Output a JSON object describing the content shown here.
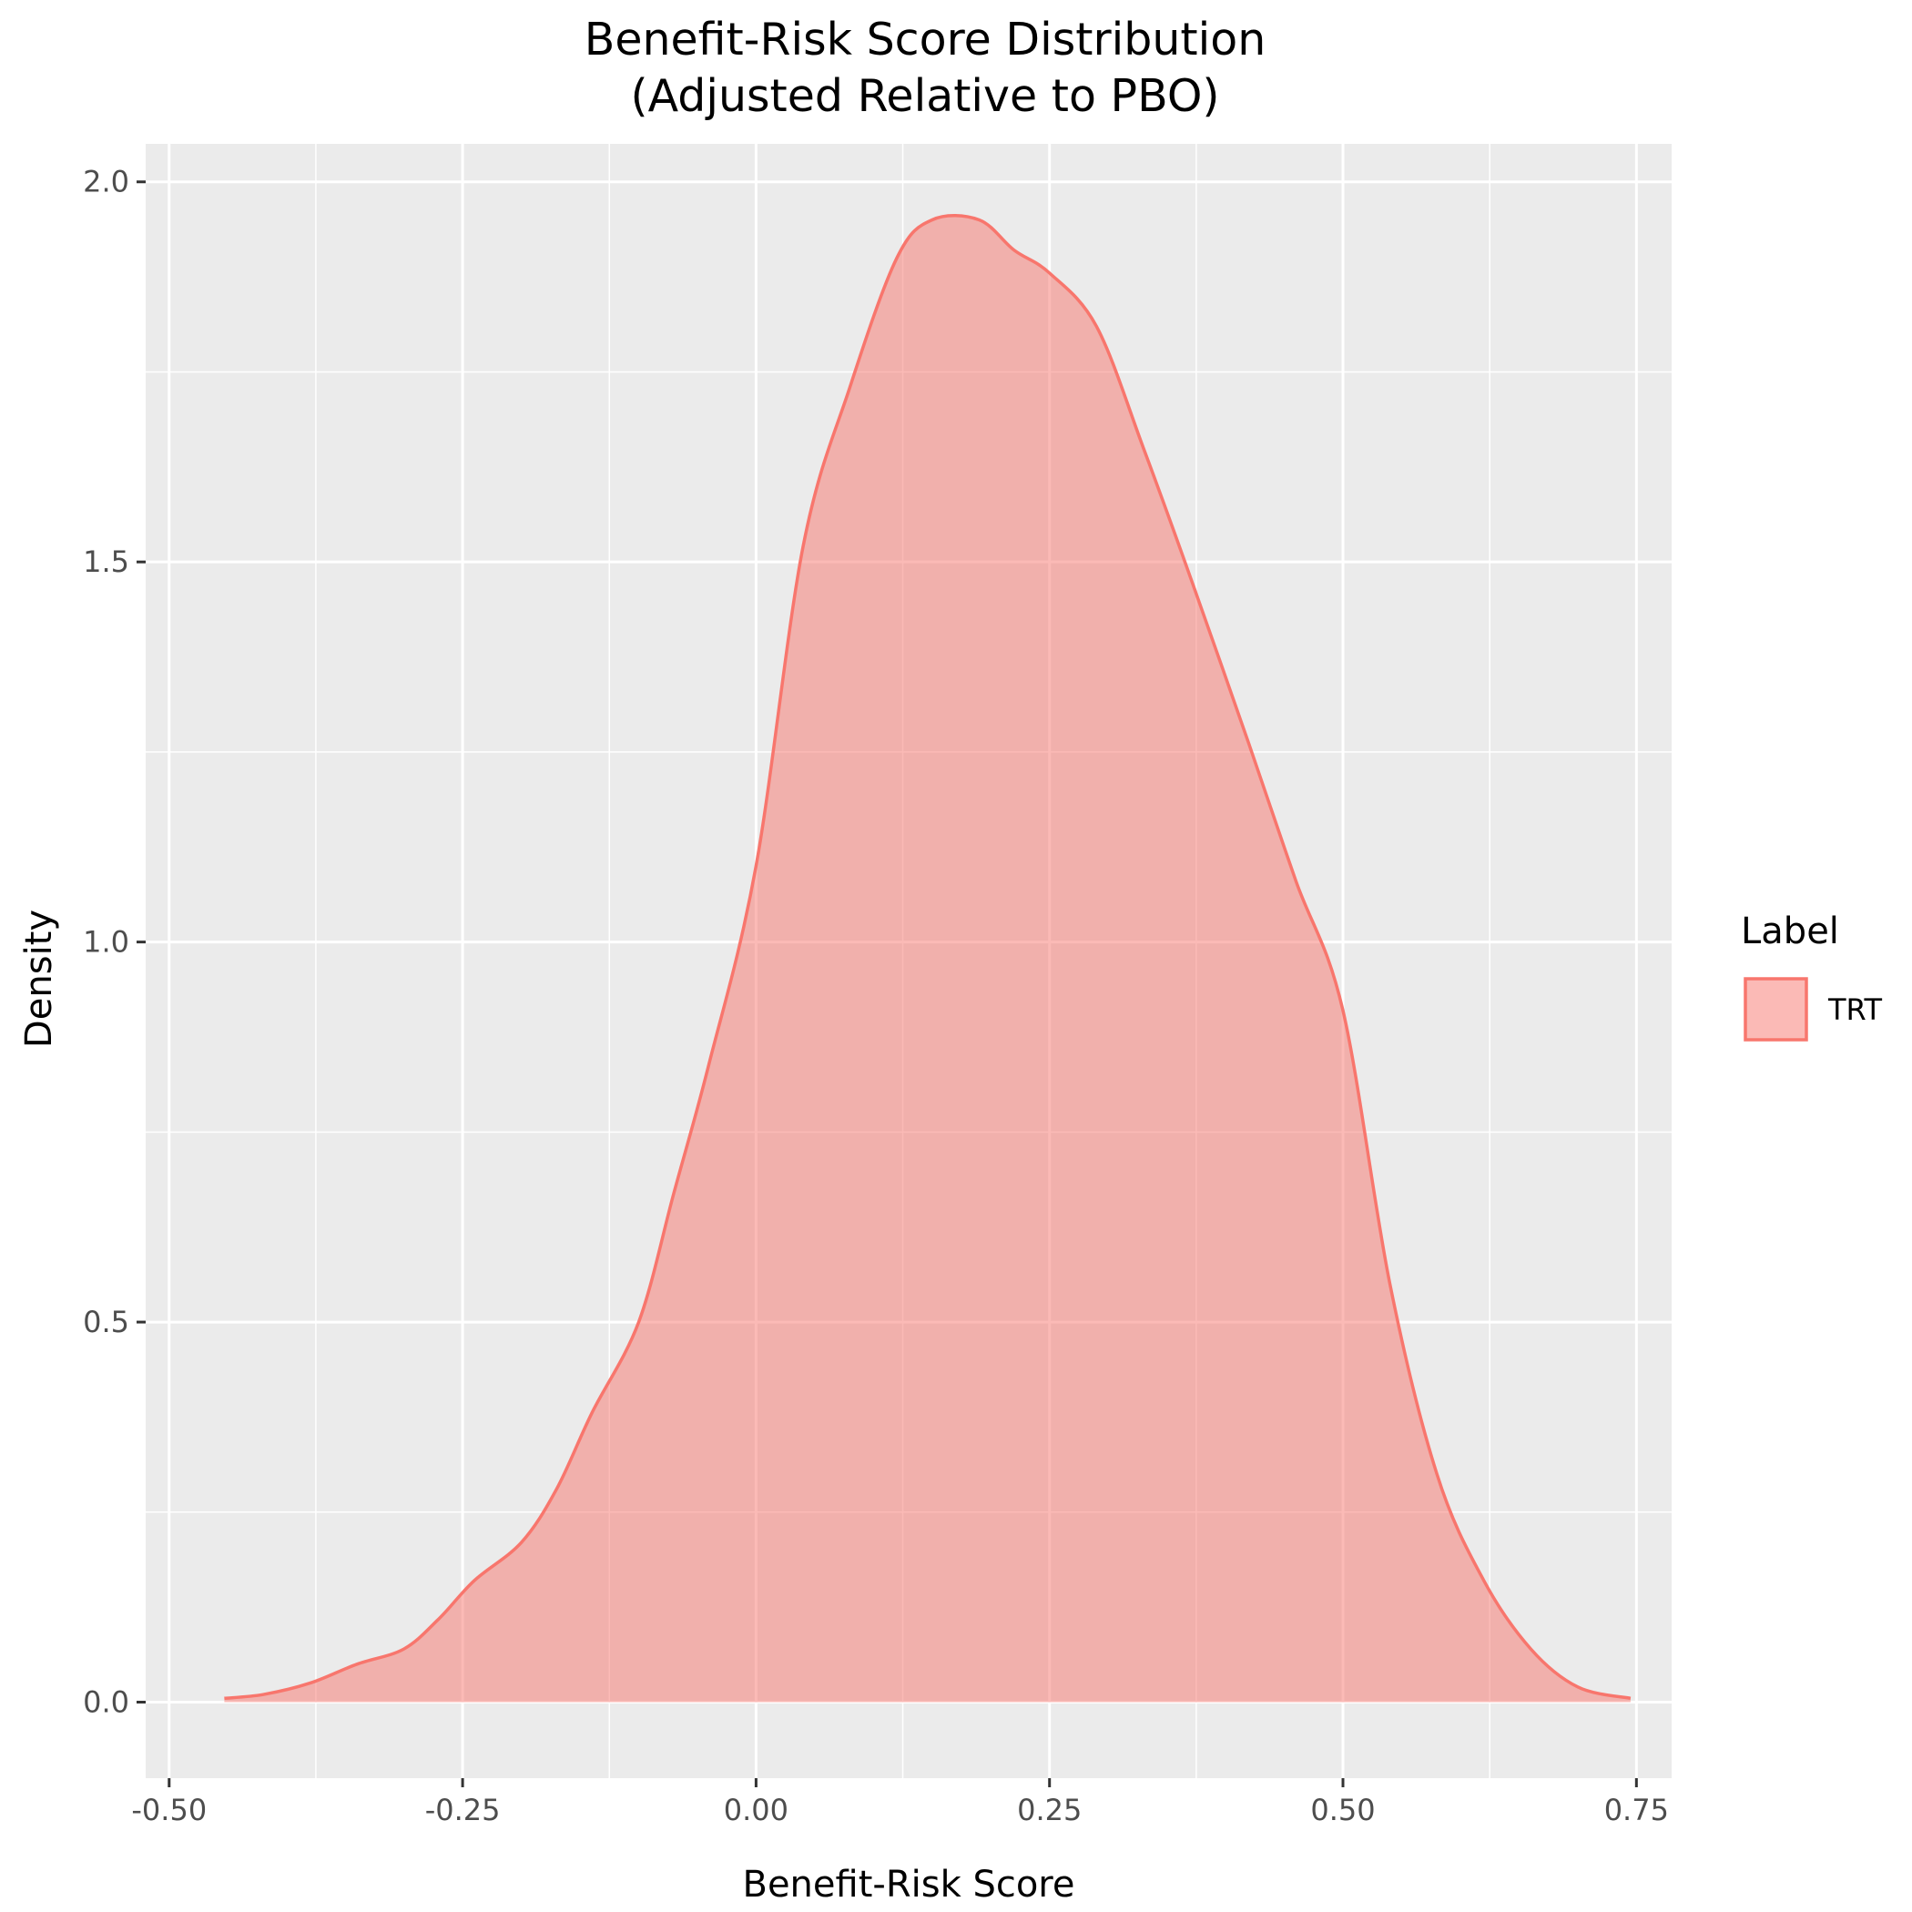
{
  "chart_data": {
    "type": "area",
    "title": "Benefit-Risk Score Distribution",
    "subtitle": "(Adjusted Relative to PBO)",
    "xlabel": "Benefit-Risk Score",
    "ylabel": "Density",
    "xlim": [
      -0.52,
      0.78
    ],
    "ylim": [
      -0.1,
      2.05
    ],
    "x_ticks": [
      -0.5,
      -0.25,
      0,
      0.25,
      0.5,
      0.75
    ],
    "x_tick_labels": [
      "-0.50",
      "-0.25",
      "0.00",
      "0.25",
      "0.50",
      "0.75"
    ],
    "y_ticks": [
      0,
      0.5,
      1,
      1.5,
      2
    ],
    "y_tick_labels": [
      "0.0",
      "0.5",
      "1.0",
      "1.5",
      "2.0"
    ],
    "grid": true,
    "legend": {
      "title": "Label",
      "position": "right"
    },
    "series": [
      {
        "name": "TRT",
        "color": "#F8766D",
        "fill": "#F8766D",
        "fill_opacity": 0.5,
        "x": [
          -0.453,
          -0.42,
          -0.38,
          -0.34,
          -0.3,
          -0.27,
          -0.24,
          -0.2,
          -0.17,
          -0.14,
          -0.1,
          -0.07,
          -0.04,
          0.0,
          0.04,
          0.08,
          0.12,
          0.15,
          0.19,
          0.22,
          0.25,
          0.29,
          0.33,
          0.37,
          0.42,
          0.46,
          0.5,
          0.54,
          0.58,
          0.62,
          0.66,
          0.7,
          0.745
        ],
        "y": [
          0.005,
          0.01,
          0.025,
          0.05,
          0.07,
          0.11,
          0.16,
          0.21,
          0.28,
          0.38,
          0.5,
          0.67,
          0.84,
          1.1,
          1.52,
          1.73,
          1.9,
          1.95,
          1.95,
          1.91,
          1.88,
          1.81,
          1.65,
          1.48,
          1.26,
          1.08,
          0.91,
          0.55,
          0.3,
          0.16,
          0.07,
          0.02,
          0.005
        ]
      }
    ]
  }
}
